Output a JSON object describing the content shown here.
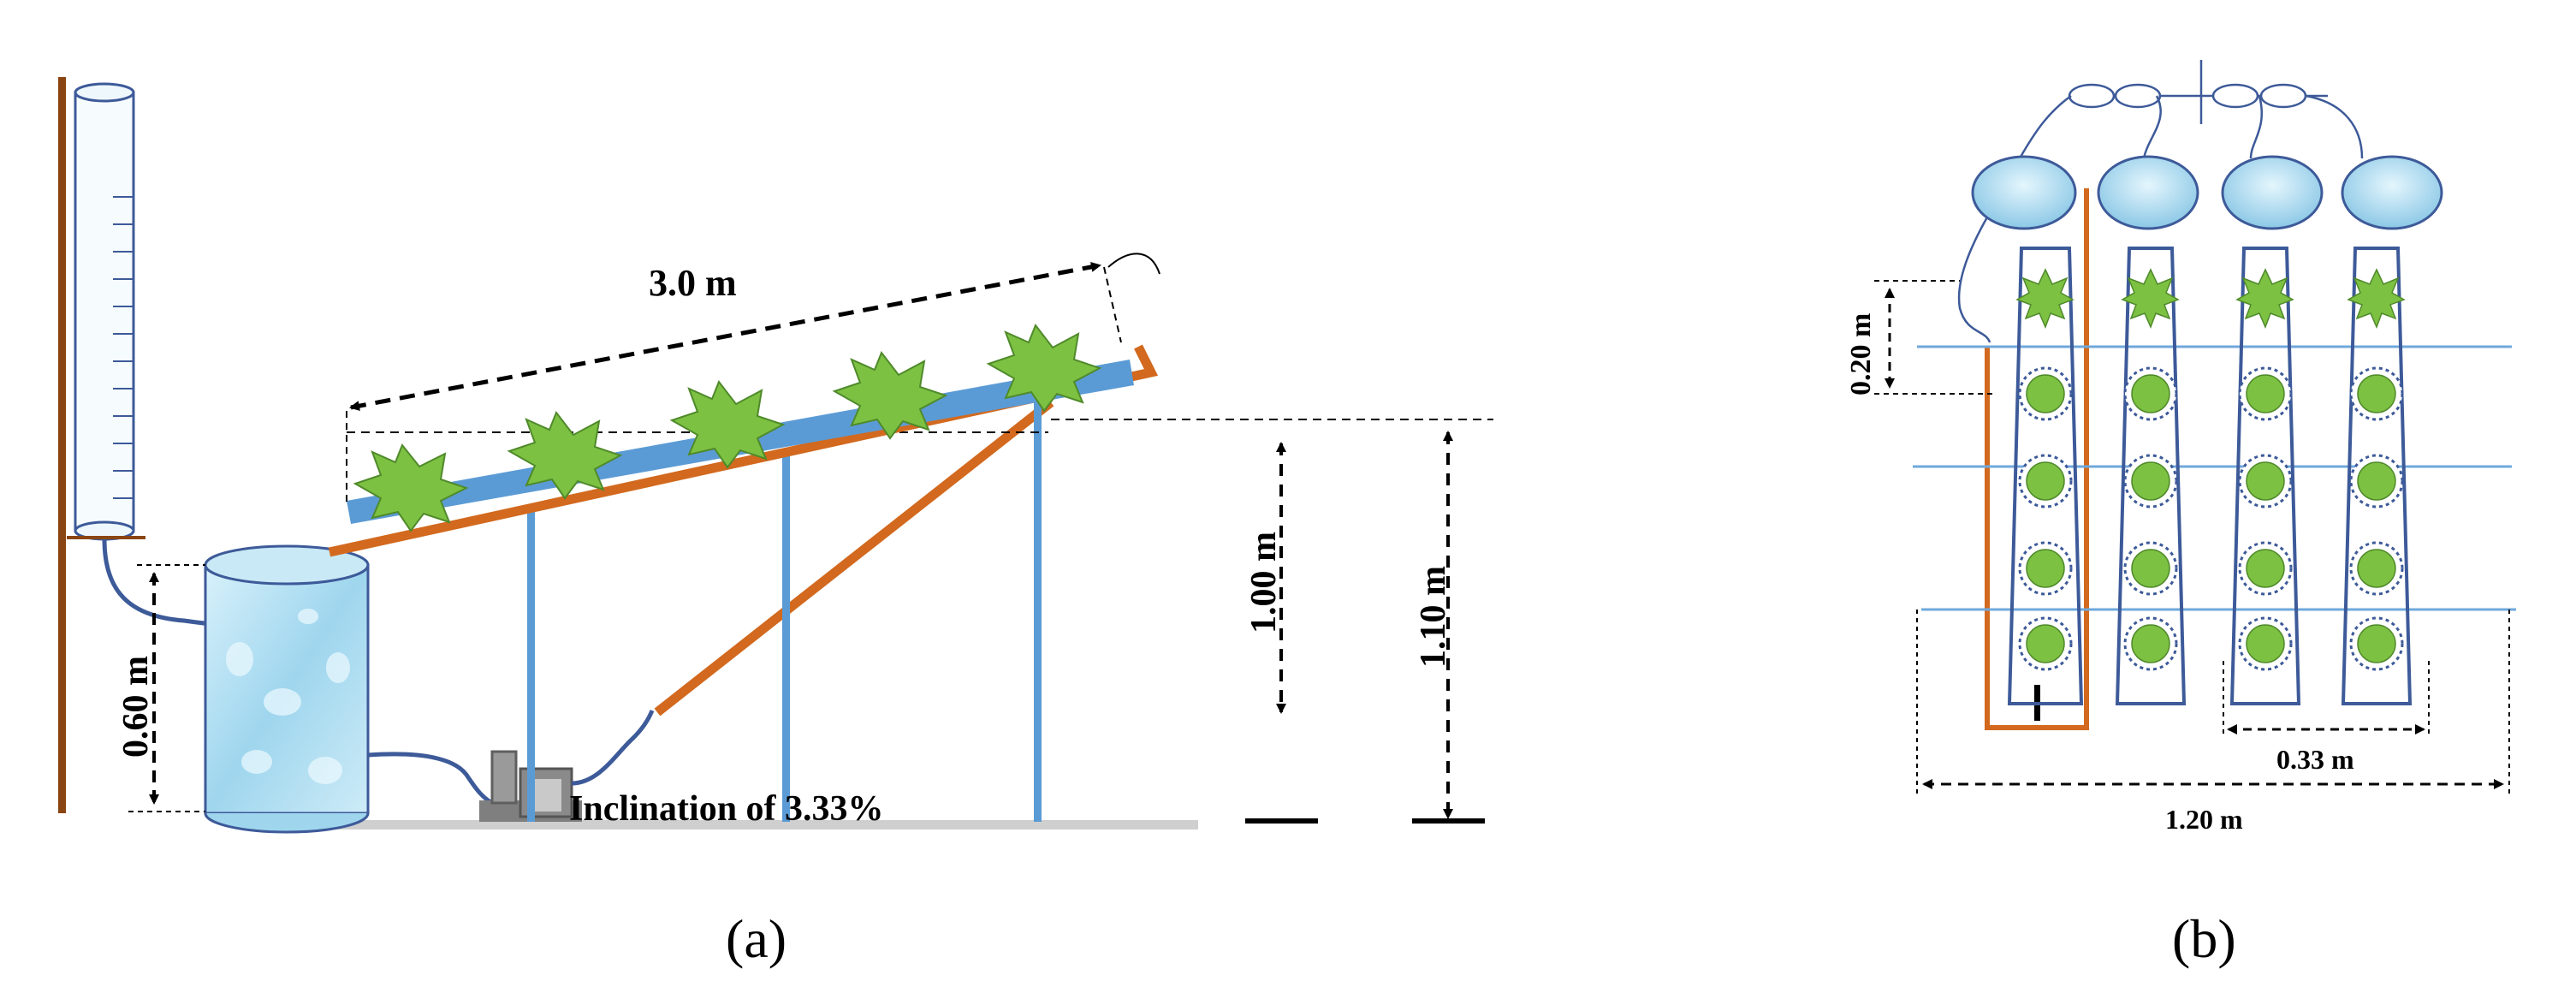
{
  "panel_a": {
    "caption": "(a)",
    "labels": {
      "length": "3.0 m",
      "reservoir_height": "0.60 m",
      "support_height_1": "1.00 m",
      "support_height_2": "1.10 m",
      "inclination": "Inclination of 3.33%"
    }
  },
  "panel_b": {
    "caption": "(b)",
    "labels": {
      "plant_spacing": "0.20 m",
      "channel_spacing": "0.33 m",
      "total_width": "1.20 m"
    },
    "channels": 4,
    "plants_per_channel": 5
  },
  "colors": {
    "orange": "#d2691e",
    "blue": "#5b9bd5",
    "channel_blue": "#6fa8dc",
    "plant_green": "#7dc143",
    "outline": "#3d5a99",
    "water": "#a9dcf2"
  },
  "icons": [
    "graduated-cylinder-icon",
    "water-reservoir-icon",
    "pump-icon",
    "plant-icon",
    "drip-emitter-icon"
  ]
}
